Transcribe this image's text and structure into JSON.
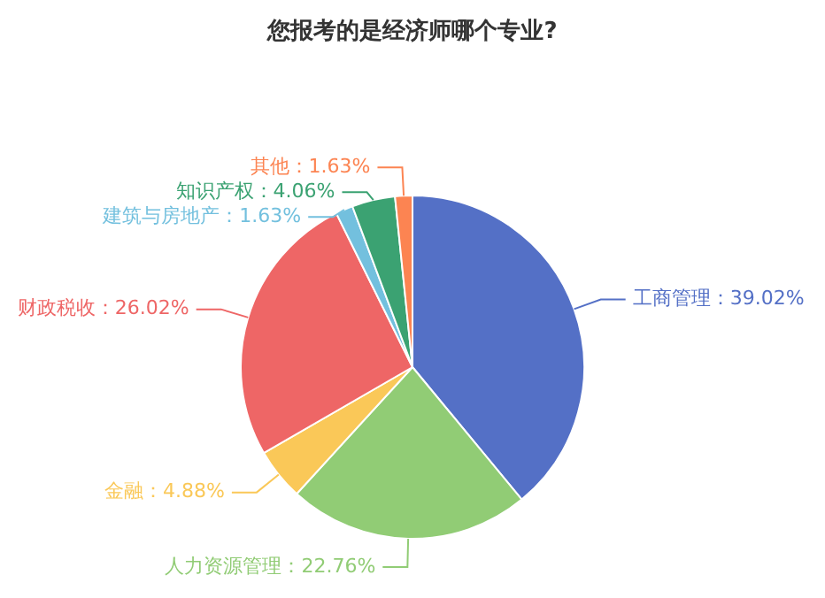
{
  "chart_data": {
    "type": "pie",
    "title": "您报考的是经济师哪个专业?",
    "categories": [
      "工商管理",
      "人力资源管理",
      "金融",
      "财政税收",
      "建筑与房地产",
      "知识产权",
      "其他"
    ],
    "values": [
      39.02,
      22.76,
      4.88,
      26.02,
      1.63,
      4.06,
      1.63
    ],
    "colors": [
      "#5470c6",
      "#91cc75",
      "#fac858",
      "#ee6666",
      "#73c0de",
      "#3ba272",
      "#fc8452"
    ],
    "value_labels": [
      "39.02%",
      "22.76%",
      "4.88%",
      "26.02%",
      "1.63%",
      "4.06%",
      "1.63%"
    ],
    "legend": false
  }
}
